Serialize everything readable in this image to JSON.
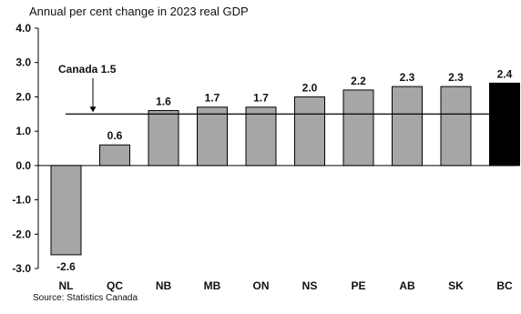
{
  "title": "Annual per cent change in 2023 real GDP",
  "source": "Source: Statistics Canada",
  "chart_data": {
    "type": "bar",
    "title": "Annual per cent change in 2023 real GDP",
    "categories": [
      "NL",
      "QC",
      "NB",
      "MB",
      "ON",
      "NS",
      "PE",
      "AB",
      "SK",
      "BC"
    ],
    "values": [
      -2.6,
      0.6,
      1.6,
      1.7,
      1.7,
      2.0,
      2.2,
      2.3,
      2.3,
      2.4
    ],
    "data_labels": [
      "-2.6",
      "0.6",
      "1.6",
      "1.7",
      "1.7",
      "2.0",
      "2.2",
      "2.3",
      "2.3",
      "2.4"
    ],
    "ylim": [
      -3.0,
      4.0
    ],
    "yticks": [
      "4.0",
      "3.0",
      "2.0",
      "1.0",
      "0.0",
      "-1.0",
      "-2.0",
      "-3.0"
    ],
    "ytick_values": [
      4.0,
      3.0,
      2.0,
      1.0,
      0.0,
      -1.0,
      -2.0,
      -3.0
    ],
    "reference_line": {
      "label": "Canada 1.5",
      "value": 1.5
    },
    "highlight_category": "BC",
    "colors": {
      "bar": "#a6a6a6",
      "highlight": "#000000",
      "outline": "#000000"
    },
    "grid": false
  }
}
